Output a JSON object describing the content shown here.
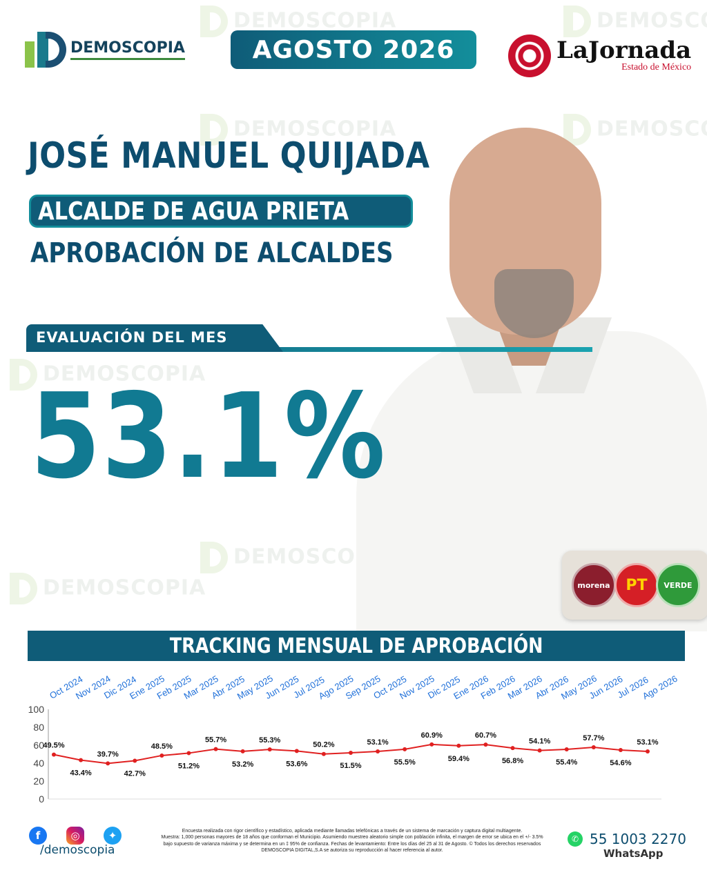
{
  "header": {
    "brand": "DEMOSCOPIA",
    "month": "AGOSTO 2026",
    "partner_title": "LaJornada",
    "partner_subtitle": "Estado de México"
  },
  "subject": {
    "name": "JOSÉ MANUEL QUIJADA",
    "role": "ALCALDE DE AGUA PRIETA",
    "section": "APROBACIÓN DE ALCALDES"
  },
  "evaluation": {
    "label": "EVALUACIÓN DEL MES",
    "value": "53.1%"
  },
  "parties": [
    {
      "name": "morena",
      "label": "morena",
      "color": "#8b1e2d"
    },
    {
      "name": "pt",
      "label": "PT",
      "color": "#d51f26"
    },
    {
      "name": "verde",
      "label": "VERDE",
      "color": "#2f9a3a"
    }
  ],
  "tracking": {
    "title": "TRACKING MENSUAL DE APROBACIÓN"
  },
  "chart_data": {
    "type": "line",
    "categories": [
      "Oct 2024",
      "Nov 2024",
      "Dic 2024",
      "Ene 2025",
      "Feb 2025",
      "Mar 2025",
      "Abr 2025",
      "May 2025",
      "Jun 2025",
      "Jul 2025",
      "Ago 2025",
      "Sep 2025",
      "Oct 2025",
      "Nov 2025",
      "Dic 2025",
      "Ene 2026",
      "Feb 2026",
      "Mar 2026",
      "Abr 2026",
      "May 2026",
      "Jun 2026",
      "Jul 2026",
      "Ago 2026"
    ],
    "series": [
      {
        "values": [
          49.5,
          43.4,
          39.7,
          42.7,
          48.5,
          51.2,
          55.7,
          53.2,
          55.3,
          53.6,
          50.2,
          51.5,
          53.1,
          55.5,
          60.9,
          59.4,
          60.7,
          56.8,
          54.1,
          55.4,
          57.7,
          54.6,
          53.1
        ]
      }
    ],
    "data_labels": [
      "49.5%",
      "43.4%",
      "39.7%",
      "42.7%",
      "48.5%",
      "51.2%",
      "55.7%",
      "53.2%",
      "55.3%",
      "53.6%",
      "50.2%",
      "51.5%",
      "53.1%",
      "55.5%",
      "60.9%",
      "59.4%",
      "60.7%",
      "56.8%",
      "54.1%",
      "55.4%",
      "57.7%",
      "54.6%",
      "53.1%"
    ],
    "label_positions": [
      "above",
      "below",
      "above",
      "below",
      "above",
      "below",
      "above",
      "below",
      "above",
      "below",
      "above",
      "below",
      "above",
      "below",
      "above",
      "below",
      "above",
      "below",
      "above",
      "below",
      "above",
      "below",
      "above"
    ],
    "yticks": [
      "0",
      "20",
      "40",
      "60",
      "80",
      "100"
    ],
    "ylim": [
      0,
      100
    ],
    "line_color": "#e02020",
    "category_color": "#1e6fd9",
    "grid": false
  },
  "footer": {
    "handle": "/demoscopia",
    "disclaimer_1": "Encuesta realizada con rigor científico y estadístico, aplicada mediante llamadas telefónicas a través de un sistema de marcación y captura digital multiagente.",
    "disclaimer_2": "Muestra: 1,000 personas mayores de 18 años que conforman el Municipio. Asumiendo muestreo aleatorio simple con población infinita, el margen de error se ubica en el +/- 3.5%",
    "disclaimer_3": "bajo supuesto de varianza máxima y se determina en un ‡ 95% de confianza. Fechas de levantamiento: Entre los días del 25 al 31 de Agosto. © Todos los derechos reservados",
    "disclaimer_4": "DEMOSCOPIA DIGITAL,S.A se autoriza su reproducción al hacer referencia al autor.",
    "phone": "55 1003 2270",
    "whatsapp": "WhatsApp"
  },
  "icons": {
    "facebook": "facebook-icon",
    "instagram": "instagram-icon",
    "twitter": "twitter-icon",
    "whatsapp": "whatsapp-icon"
  }
}
